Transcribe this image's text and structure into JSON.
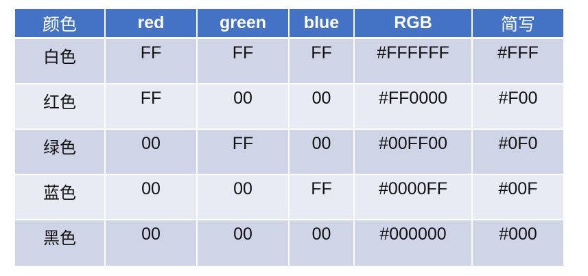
{
  "table": {
    "headers": [
      "颜色",
      "red",
      "green",
      "blue",
      "RGB",
      "简写"
    ],
    "rows": [
      [
        "白色",
        "FF",
        "FF",
        "FF",
        "#FFFFFF",
        "#FFF"
      ],
      [
        "红色",
        "FF",
        "00",
        "00",
        "#FF0000",
        "#F00"
      ],
      [
        "绿色",
        "00",
        "FF",
        "00",
        "#00FF00",
        "#0F0"
      ],
      [
        "蓝色",
        "00",
        "00",
        "FF",
        "#0000FF",
        "#00F"
      ],
      [
        "黑色",
        "00",
        "00",
        "00",
        "#000000",
        "#000"
      ]
    ]
  },
  "colors": {
    "header_background": "#4472c4",
    "row_odd": "#cfd5e6",
    "row_even": "#e9ebf4"
  }
}
